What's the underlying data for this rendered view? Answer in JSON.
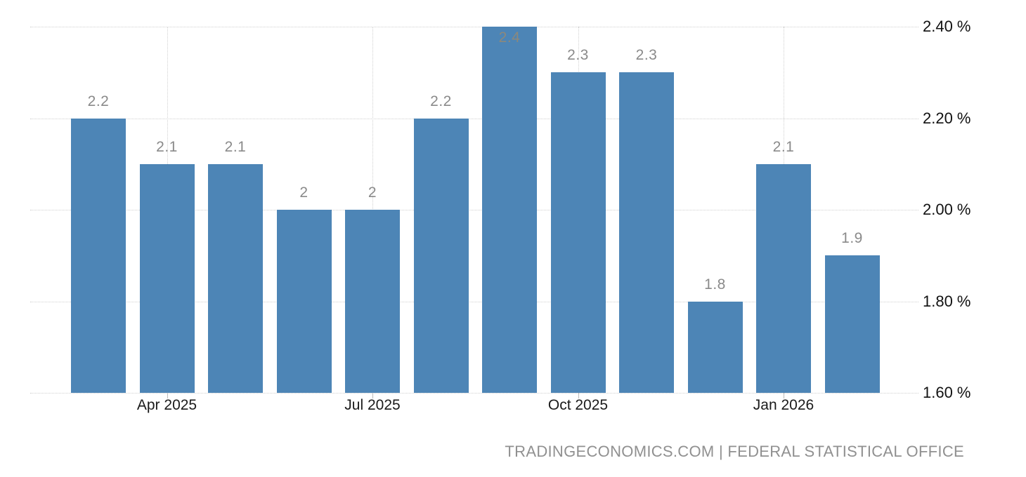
{
  "attribution": "TRADINGECONOMICS.COM | FEDERAL STATISTICAL OFFICE",
  "colors": {
    "bar": "#4d85b6",
    "value_label": "#8a8a8a",
    "value_label_inside": "#8c887c",
    "axis_text": "#1a1a1a",
    "gridline": "#d0d0d0",
    "tick_mark": "#bbbbbb",
    "attribution_text": "#909090",
    "background": "#ffffff"
  },
  "chart_data": {
    "type": "bar",
    "title": "",
    "xlabel": "",
    "ylabel": "",
    "ylim": [
      1.6,
      2.4
    ],
    "grid": "dotted",
    "legend": "none",
    "y_axis_side": "right",
    "values": [
      2.2,
      2.1,
      2.1,
      2.0,
      2.0,
      2.2,
      2.4,
      2.3,
      2.3,
      1.8,
      2.1,
      1.9
    ],
    "bar_value_labels": [
      "2.2",
      "2.1",
      "2.1",
      "2",
      "2",
      "2.2",
      "2.4",
      "2.3",
      "2.3",
      "1.8",
      "2.1",
      "1.9"
    ],
    "value_label_position": [
      "above",
      "above",
      "above",
      "above",
      "above",
      "above",
      "inside",
      "above",
      "above",
      "above",
      "above",
      "above"
    ],
    "x_ticks": [
      {
        "label": "Apr 2025",
        "bar_index": 1
      },
      {
        "label": "Jul 2025",
        "bar_index": 4
      },
      {
        "label": "Oct 2025",
        "bar_index": 7
      },
      {
        "label": "Jan 2026",
        "bar_index": 10
      }
    ],
    "y_ticks": [
      {
        "label": "2.40 %",
        "value": 2.4
      },
      {
        "label": "2.20 %",
        "value": 2.2
      },
      {
        "label": "2.00 %",
        "value": 2.0
      },
      {
        "label": "1.80 %",
        "value": 1.8
      },
      {
        "label": "1.60 %",
        "value": 1.6
      }
    ]
  }
}
